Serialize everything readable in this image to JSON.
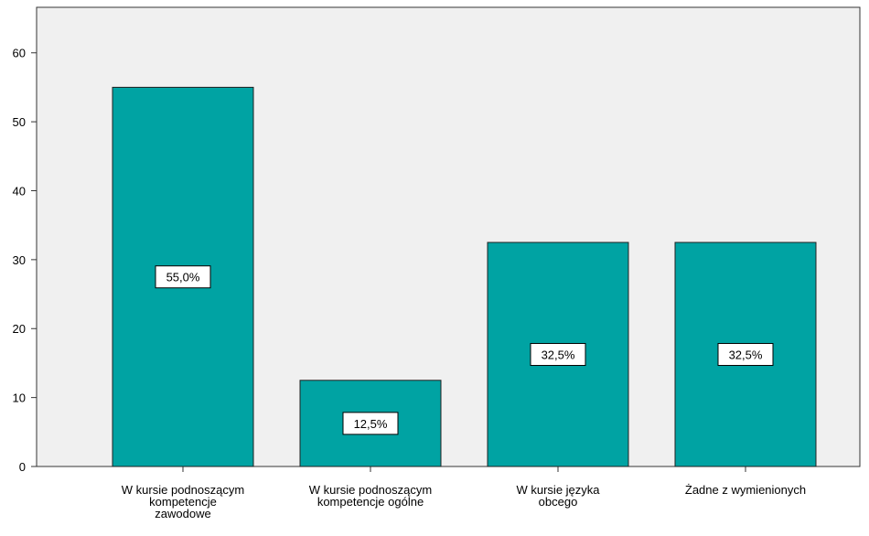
{
  "chart_data": {
    "type": "bar",
    "categories": [
      "W kursie podnoszącym\nkompetencje\nzawodowe",
      "W kursie podnoszącym\nkompetencje ogólne",
      "W kursie języka\nobcego",
      "Żadne z wymienionych"
    ],
    "values": [
      55.0,
      12.5,
      32.5,
      32.5
    ],
    "value_labels": [
      "55,0%",
      "12,5%",
      "32,5%",
      "32,5%"
    ],
    "color": "#00a3a3",
    "ylim": [
      0,
      66.6
    ],
    "yticks": [
      0,
      10,
      20,
      30,
      40,
      50,
      60
    ]
  }
}
